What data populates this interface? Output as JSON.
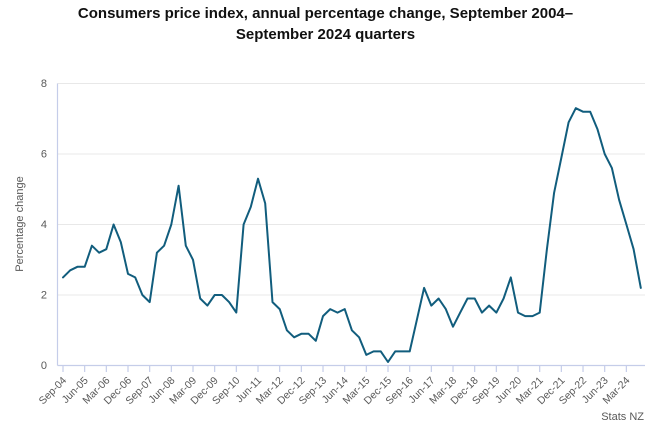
{
  "title": "Consumers price index, annual percentage change, September 2004–September 2024 quarters",
  "source": "Stats NZ",
  "chart_data": {
    "type": "line",
    "title": "Consumers price index, annual percentage change, September 2004–September 2024 quarters",
    "xlabel": "",
    "ylabel": "Percentage change",
    "ylim": [
      0,
      8
    ],
    "y_ticks": [
      0,
      2,
      4,
      6,
      8
    ],
    "grid": "horizontal",
    "legend": "none",
    "line_color": "#115d7d",
    "grid_color": "#e8e8e8",
    "axis_color": "#c5cde9",
    "text_color": "#595959",
    "title_color": "#111111",
    "x": [
      "Sep-04",
      "Dec-04",
      "Mar-05",
      "Jun-05",
      "Sep-05",
      "Dec-05",
      "Mar-06",
      "Jun-06",
      "Sep-06",
      "Dec-06",
      "Mar-07",
      "Jun-07",
      "Sep-07",
      "Dec-07",
      "Mar-08",
      "Jun-08",
      "Sep-08",
      "Dec-08",
      "Mar-09",
      "Jun-09",
      "Sep-09",
      "Dec-09",
      "Mar-10",
      "Jun-10",
      "Sep-10",
      "Dec-10",
      "Mar-11",
      "Jun-11",
      "Sep-11",
      "Dec-11",
      "Mar-12",
      "Jun-12",
      "Sep-12",
      "Dec-12",
      "Mar-13",
      "Jun-13",
      "Sep-13",
      "Dec-13",
      "Mar-14",
      "Jun-14",
      "Sep-14",
      "Dec-14",
      "Mar-15",
      "Jun-15",
      "Sep-15",
      "Dec-15",
      "Mar-16",
      "Jun-16",
      "Sep-16",
      "Dec-16",
      "Mar-17",
      "Jun-17",
      "Sep-17",
      "Dec-17",
      "Mar-18",
      "Jun-18",
      "Sep-18",
      "Dec-18",
      "Mar-19",
      "Jun-19",
      "Sep-19",
      "Dec-19",
      "Mar-20",
      "Jun-20",
      "Sep-20",
      "Dec-20",
      "Mar-21",
      "Jun-21",
      "Sep-21",
      "Dec-21",
      "Mar-22",
      "Jun-22",
      "Sep-22",
      "Dec-22",
      "Mar-23",
      "Jun-23",
      "Sep-23",
      "Dec-23",
      "Mar-24",
      "Jun-24",
      "Sep-24"
    ],
    "x_tick_labels": [
      "Sep-04",
      "Jun-05",
      "Mar-06",
      "Dec-06",
      "Sep-07",
      "Jun-08",
      "Mar-09",
      "Dec-09",
      "Sep-10",
      "Jun-11",
      "Mar-12",
      "Dec-12",
      "Sep-13",
      "Jun-14",
      "Mar-15",
      "Dec-15",
      "Sep-16",
      "Jun-17",
      "Mar-18",
      "Dec-18",
      "Sep-19",
      "Jun-20",
      "Mar-21",
      "Dec-21",
      "Sep-22",
      "Jun-23",
      "Mar-24"
    ],
    "x_tick_every": 3,
    "series": [
      {
        "name": "CPI annual percentage change",
        "values": [
          2.5,
          2.7,
          2.8,
          2.8,
          3.4,
          3.2,
          3.3,
          4.0,
          3.5,
          2.6,
          2.5,
          2.0,
          1.8,
          3.2,
          3.4,
          4.0,
          5.1,
          3.4,
          3.0,
          1.9,
          1.7,
          2.0,
          2.0,
          1.8,
          1.5,
          4.0,
          4.5,
          5.3,
          4.6,
          1.8,
          1.6,
          1.0,
          0.8,
          0.9,
          0.9,
          0.7,
          1.4,
          1.6,
          1.5,
          1.6,
          1.0,
          0.8,
          0.3,
          0.4,
          0.4,
          0.1,
          0.4,
          0.4,
          0.4,
          1.3,
          2.2,
          1.7,
          1.9,
          1.6,
          1.1,
          1.5,
          1.9,
          1.9,
          1.5,
          1.7,
          1.5,
          1.9,
          2.5,
          1.5,
          1.4,
          1.4,
          1.5,
          3.3,
          4.9,
          5.9,
          6.9,
          7.3,
          7.2,
          7.2,
          6.7,
          6.0,
          5.6,
          4.7,
          4.0,
          3.3,
          2.2
        ]
      }
    ]
  }
}
